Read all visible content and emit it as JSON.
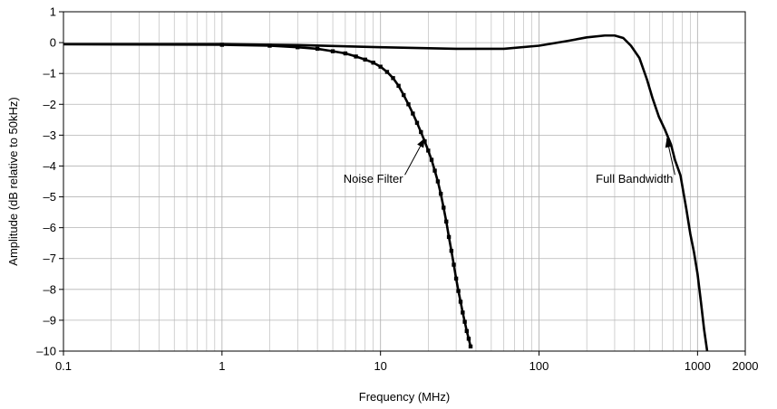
{
  "chart_data": {
    "type": "line",
    "title": "",
    "xlabel": "Frequency (MHz)",
    "ylabel": "Amplitude (dB relative to 50kHz)",
    "xscale": "log",
    "xlim": [
      0.1,
      2000
    ],
    "ylim": [
      -10,
      1
    ],
    "grid": true,
    "legend": "none",
    "line_color": "#000000",
    "grid_color": "#b4b4b4",
    "x_ticks": [
      {
        "value": 0.1,
        "label": "0.1"
      },
      {
        "value": 1,
        "label": "1"
      },
      {
        "value": 10,
        "label": "10"
      },
      {
        "value": 100,
        "label": "100"
      },
      {
        "value": 1000,
        "label": "1000"
      },
      {
        "value": 2000,
        "label": "2000"
      }
    ],
    "y_ticks": [
      {
        "value": 1,
        "label": "1"
      },
      {
        "value": 0,
        "label": "0"
      },
      {
        "value": -1,
        "label": "–1"
      },
      {
        "value": -2,
        "label": "–2"
      },
      {
        "value": -3,
        "label": "–3"
      },
      {
        "value": -4,
        "label": "–4"
      },
      {
        "value": -5,
        "label": "–5"
      },
      {
        "value": -6,
        "label": "–6"
      },
      {
        "value": -7,
        "label": "–7"
      },
      {
        "value": -8,
        "label": "–8"
      },
      {
        "value": -9,
        "label": "–9"
      },
      {
        "value": -10,
        "label": "–10"
      }
    ],
    "series": [
      {
        "name": "Full Bandwidth",
        "x": [
          0.1,
          0.3,
          1,
          3,
          10,
          30,
          60,
          100,
          150,
          200,
          260,
          300,
          340,
          380,
          430,
          480,
          520,
          570,
          620,
          680,
          720,
          780,
          850,
          900,
          950,
          1000,
          1050,
          1100,
          1150
        ],
        "y": [
          -0.05,
          -0.05,
          -0.05,
          -0.08,
          -0.15,
          -0.2,
          -0.2,
          -0.1,
          0.05,
          0.17,
          0.23,
          0.23,
          0.15,
          -0.1,
          -0.5,
          -1.2,
          -1.8,
          -2.4,
          -2.8,
          -3.3,
          -3.8,
          -4.3,
          -5.4,
          -6.2,
          -6.8,
          -7.5,
          -8.4,
          -9.3,
          -10
        ]
      },
      {
        "name": "Noise Filter",
        "x": [
          0.1,
          1,
          2,
          3,
          4,
          5,
          6,
          7,
          8,
          9,
          10,
          11,
          12,
          13,
          14,
          15,
          16,
          17,
          18,
          19,
          20,
          21,
          22,
          23,
          24,
          25,
          26,
          27,
          28,
          29,
          30,
          31,
          32,
          33,
          34,
          35,
          36,
          37
        ],
        "y": [
          -0.05,
          -0.07,
          -0.1,
          -0.15,
          -0.2,
          -0.28,
          -0.35,
          -0.45,
          -0.55,
          -0.65,
          -0.78,
          -0.95,
          -1.15,
          -1.4,
          -1.7,
          -2.0,
          -2.3,
          -2.6,
          -2.9,
          -3.2,
          -3.5,
          -3.8,
          -4.15,
          -4.5,
          -4.9,
          -5.35,
          -5.8,
          -6.3,
          -6.75,
          -7.2,
          -7.65,
          -8.05,
          -8.4,
          -8.75,
          -9.05,
          -9.35,
          -9.6,
          -9.85
        ]
      }
    ],
    "annotations": [
      {
        "text": "Noise Filter",
        "text_x": 9,
        "text_y": -4.55,
        "arrow_to_x": 19,
        "arrow_to_y": -3.1
      },
      {
        "text": "Full Bandwidth",
        "text_x": 400,
        "text_y": -4.55,
        "arrow_to_x": 640,
        "arrow_to_y": -3.1
      }
    ]
  }
}
